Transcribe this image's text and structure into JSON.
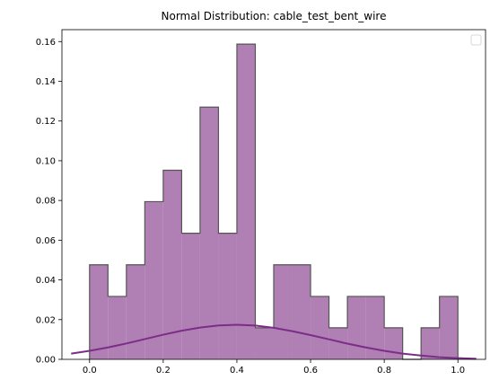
{
  "chart_data": {
    "type": "bar",
    "title": "Normal Distribution: cable_test_bent_wire",
    "xlabel": "",
    "ylabel": "",
    "xlim": [
      -0.075,
      1.075
    ],
    "ylim": [
      0,
      0.166
    ],
    "x_ticks": [
      "0.0",
      "0.2",
      "0.4",
      "0.6",
      "0.8",
      "1.0"
    ],
    "y_ticks": [
      "0.00",
      "0.02",
      "0.04",
      "0.06",
      "0.08",
      "0.10",
      "0.12",
      "0.14",
      "0.16"
    ],
    "grid": false,
    "legend": "top-right (empty)",
    "series": [
      {
        "kind": "step-histogram",
        "bin_edges": [
          0.0,
          0.05,
          0.1,
          0.15,
          0.2,
          0.25,
          0.3,
          0.35,
          0.4,
          0.45,
          0.5,
          0.55,
          0.6,
          0.65,
          0.7,
          0.75,
          0.8,
          0.85,
          0.9,
          0.95,
          1.0
        ],
        "values": [
          0.0476,
          0.0317,
          0.0476,
          0.0794,
          0.0952,
          0.0635,
          0.127,
          0.0635,
          0.1587,
          0.0159,
          0.0476,
          0.0476,
          0.0317,
          0.0159,
          0.0317,
          0.0317,
          0.0159,
          0.0,
          0.0159,
          0.0317
        ],
        "fill": "#b07fb4",
        "edge": "#555555"
      },
      {
        "kind": "curve",
        "x": [
          -0.05,
          0.0,
          0.05,
          0.1,
          0.15,
          0.2,
          0.25,
          0.3,
          0.35,
          0.4,
          0.45,
          0.5,
          0.55,
          0.6,
          0.65,
          0.7,
          0.75,
          0.8,
          0.85,
          0.9,
          0.95,
          1.0,
          1.05
        ],
        "y": [
          0.0029,
          0.0043,
          0.006,
          0.008,
          0.0102,
          0.0124,
          0.0144,
          0.016,
          0.0171,
          0.0174,
          0.017,
          0.0159,
          0.0142,
          0.0122,
          0.0101,
          0.0079,
          0.006,
          0.0043,
          0.0029,
          0.0019,
          0.0011,
          0.0006,
          0.0003
        ],
        "color": "#7b2d88"
      }
    ]
  }
}
